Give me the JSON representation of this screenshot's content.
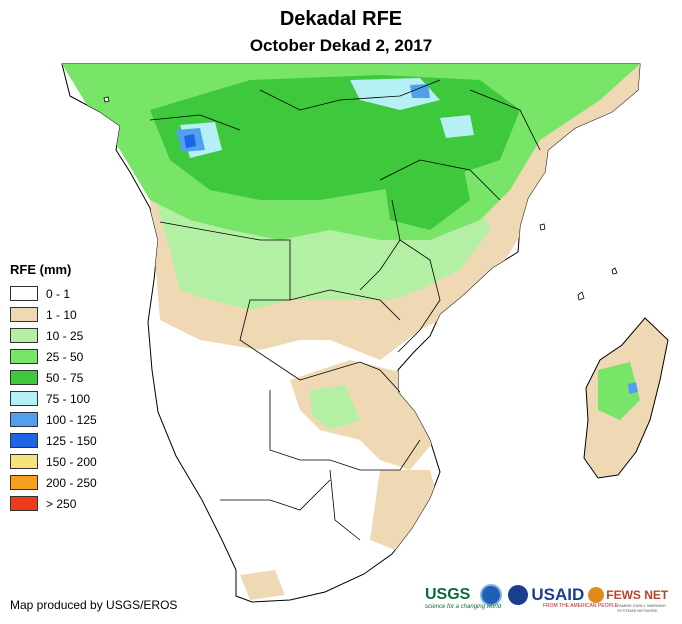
{
  "title": "Dekadal RFE",
  "subtitle": "October Dekad 2, 2017",
  "legend": {
    "title": "RFE (mm)",
    "items": [
      {
        "label": "0 - 1",
        "color": "#ffffff"
      },
      {
        "label": "1 - 10",
        "color": "#efd9b5"
      },
      {
        "label": "10 - 25",
        "color": "#b4f0a4"
      },
      {
        "label": "25 - 50",
        "color": "#78e468"
      },
      {
        "label": "50 - 75",
        "color": "#3ec83c"
      },
      {
        "label": "75 - 100",
        "color": "#b4f0f4"
      },
      {
        "label": "100 - 125",
        "color": "#50a0ee"
      },
      {
        "label": "125 - 150",
        "color": "#1e64e6"
      },
      {
        "label": "150 - 200",
        "color": "#f8e27c"
      },
      {
        "label": "200 - 250",
        "color": "#f6a01e"
      },
      {
        "label": "> 250",
        "color": "#ec3c1c"
      }
    ]
  },
  "credit": "Map produced by USGS/EROS",
  "logos": {
    "usgs": "USGS",
    "usgs_tagline": "science for a changing world",
    "usaid": "USAID",
    "usaid_tagline": "FROM THE AMERICAN PEOPLE",
    "fews": "FEWS NET",
    "fews_tagline": "FAMINE EARLY WARNING SYSTEMS NETWORK"
  }
}
